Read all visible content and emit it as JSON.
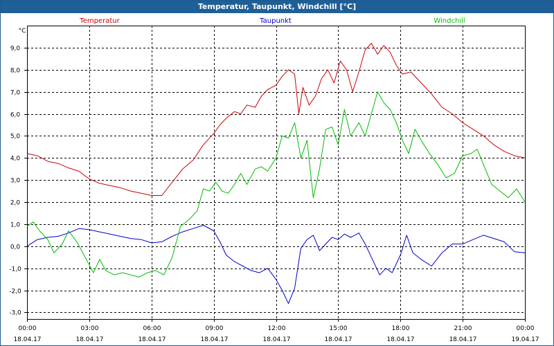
{
  "window": {
    "title": "Temperatur, Taupunkt, Windchill [°C]"
  },
  "chart_data": {
    "type": "line",
    "title": "Temperatur, Taupunkt, Windchill [°C]",
    "ylabel": "°C",
    "ylim": [
      -3.3,
      10.0
    ],
    "xlim_hours": [
      0,
      24
    ],
    "grid": true,
    "legend_position": "top",
    "y_ticks": [
      "9,0",
      "8,0",
      "7,0",
      "6,0",
      "5,0",
      "4,0",
      "3,0",
      "2,0",
      "1,0",
      "0,0",
      "-1,0",
      "-2,0",
      "-3,0"
    ],
    "y_tick_values": [
      9,
      8,
      7,
      6,
      5,
      4,
      3,
      2,
      1,
      0,
      -1,
      -2,
      -3
    ],
    "x_ticks": [
      {
        "time": "00:00",
        "date": "18.04.17"
      },
      {
        "time": "03:00",
        "date": "18.04.17"
      },
      {
        "time": "06:00",
        "date": "18.04.17"
      },
      {
        "time": "09:00",
        "date": "18.04.17"
      },
      {
        "time": "12:00",
        "date": "18.04.17"
      },
      {
        "time": "15:00",
        "date": "18.04.17"
      },
      {
        "time": "18:00",
        "date": "18.04.17"
      },
      {
        "time": "21:00",
        "date": "18.04.17"
      },
      {
        "time": "00:00",
        "date": "19.04.17"
      }
    ],
    "x_tick_hours": [
      0,
      3,
      6,
      9,
      12,
      15,
      18,
      21,
      24
    ],
    "series": [
      {
        "name": "Temperatur",
        "color": "#cc0000",
        "points": [
          [
            0,
            4.2
          ],
          [
            0.5,
            4.1
          ],
          [
            1,
            3.85
          ],
          [
            1.5,
            3.75
          ],
          [
            2,
            3.55
          ],
          [
            2.5,
            3.4
          ],
          [
            3,
            3.05
          ],
          [
            3.5,
            2.85
          ],
          [
            4,
            2.75
          ],
          [
            4.5,
            2.65
          ],
          [
            5,
            2.5
          ],
          [
            5.5,
            2.4
          ],
          [
            6,
            2.3
          ],
          [
            6.5,
            2.3
          ],
          [
            7,
            2.9
          ],
          [
            7.5,
            3.5
          ],
          [
            8,
            3.9
          ],
          [
            8.5,
            4.6
          ],
          [
            9,
            5.1
          ],
          [
            9.3,
            5.5
          ],
          [
            9.6,
            5.8
          ],
          [
            10,
            6.1
          ],
          [
            10.3,
            6.0
          ],
          [
            10.6,
            6.4
          ],
          [
            11,
            6.3
          ],
          [
            11.3,
            6.8
          ],
          [
            11.6,
            7.1
          ],
          [
            12,
            7.3
          ],
          [
            12.3,
            7.7
          ],
          [
            12.6,
            8.0
          ],
          [
            12.9,
            7.8
          ],
          [
            13.1,
            6.0
          ],
          [
            13.3,
            7.2
          ],
          [
            13.6,
            6.4
          ],
          [
            13.9,
            6.8
          ],
          [
            14.2,
            7.6
          ],
          [
            14.5,
            8.0
          ],
          [
            14.8,
            7.4
          ],
          [
            15.1,
            8.4
          ],
          [
            15.4,
            8.0
          ],
          [
            15.7,
            7.0
          ],
          [
            16,
            7.9
          ],
          [
            16.3,
            8.9
          ],
          [
            16.6,
            9.2
          ],
          [
            16.9,
            8.7
          ],
          [
            17.2,
            9.1
          ],
          [
            17.5,
            8.8
          ],
          [
            17.8,
            8.2
          ],
          [
            18.1,
            7.8
          ],
          [
            18.5,
            7.9
          ],
          [
            19,
            7.4
          ],
          [
            19.5,
            6.9
          ],
          [
            20,
            6.3
          ],
          [
            20.5,
            6.0
          ],
          [
            21,
            5.6
          ],
          [
            21.5,
            5.3
          ],
          [
            22,
            5.0
          ],
          [
            22.5,
            4.6
          ],
          [
            23,
            4.3
          ],
          [
            23.5,
            4.1
          ],
          [
            24,
            4.0
          ]
        ]
      },
      {
        "name": "Taupunkt",
        "color": "#0000cc",
        "points": [
          [
            0,
            0
          ],
          [
            0.5,
            0.3
          ],
          [
            1,
            0.4
          ],
          [
            1.5,
            0.45
          ],
          [
            2,
            0.6
          ],
          [
            2.5,
            0.8
          ],
          [
            3,
            0.75
          ],
          [
            3.5,
            0.65
          ],
          [
            4,
            0.55
          ],
          [
            4.5,
            0.45
          ],
          [
            5,
            0.35
          ],
          [
            5.5,
            0.3
          ],
          [
            6,
            0.15
          ],
          [
            6.5,
            0.2
          ],
          [
            7,
            0.45
          ],
          [
            7.5,
            0.65
          ],
          [
            8,
            0.8
          ],
          [
            8.5,
            0.95
          ],
          [
            9,
            0.7
          ],
          [
            9.3,
            0.2
          ],
          [
            9.6,
            -0.4
          ],
          [
            10,
            -0.7
          ],
          [
            10.4,
            -0.9
          ],
          [
            10.8,
            -1.1
          ],
          [
            11.2,
            -1.2
          ],
          [
            11.6,
            -1.0
          ],
          [
            12,
            -1.5
          ],
          [
            12.3,
            -2.0
          ],
          [
            12.6,
            -2.6
          ],
          [
            12.9,
            -1.9
          ],
          [
            13.2,
            -0.1
          ],
          [
            13.5,
            0.3
          ],
          [
            13.8,
            0.5
          ],
          [
            14.1,
            -0.2
          ],
          [
            14.4,
            0.1
          ],
          [
            14.7,
            0.4
          ],
          [
            15,
            0.3
          ],
          [
            15.3,
            0.55
          ],
          [
            15.6,
            0.4
          ],
          [
            16,
            0.6
          ],
          [
            16.3,
            0.1
          ],
          [
            16.6,
            -0.5
          ],
          [
            17,
            -1.3
          ],
          [
            17.3,
            -1.0
          ],
          [
            17.6,
            -1.2
          ],
          [
            18,
            -0.4
          ],
          [
            18.3,
            0.5
          ],
          [
            18.6,
            -0.3
          ],
          [
            19,
            -0.6
          ],
          [
            19.5,
            -0.9
          ],
          [
            20,
            -0.3
          ],
          [
            20.5,
            0.1
          ],
          [
            21,
            0.1
          ],
          [
            21.5,
            0.3
          ],
          [
            22,
            0.5
          ],
          [
            22.5,
            0.35
          ],
          [
            23,
            0.2
          ],
          [
            23.5,
            -0.25
          ],
          [
            24,
            -0.3
          ]
        ]
      },
      {
        "name": "Windchill",
        "color": "#00bb00",
        "points": [
          [
            0,
            0.9
          ],
          [
            0.3,
            1.1
          ],
          [
            0.6,
            0.7
          ],
          [
            1,
            0.3
          ],
          [
            1.3,
            -0.3
          ],
          [
            1.7,
            0.1
          ],
          [
            2,
            0.7
          ],
          [
            2.4,
            0.2
          ],
          [
            2.8,
            -0.5
          ],
          [
            3.2,
            -1.2
          ],
          [
            3.5,
            -0.6
          ],
          [
            3.8,
            -1.1
          ],
          [
            4.2,
            -1.3
          ],
          [
            4.6,
            -1.2
          ],
          [
            5,
            -1.3
          ],
          [
            5.4,
            -1.4
          ],
          [
            5.8,
            -1.2
          ],
          [
            6.2,
            -1.1
          ],
          [
            6.6,
            -1.3
          ],
          [
            7,
            -0.5
          ],
          [
            7.4,
            0.9
          ],
          [
            7.8,
            1.2
          ],
          [
            8.2,
            1.6
          ],
          [
            8.5,
            2.6
          ],
          [
            8.8,
            2.5
          ],
          [
            9.1,
            2.9
          ],
          [
            9.4,
            2.5
          ],
          [
            9.7,
            2.4
          ],
          [
            10,
            2.8
          ],
          [
            10.3,
            3.3
          ],
          [
            10.6,
            2.8
          ],
          [
            11,
            3.5
          ],
          [
            11.3,
            3.6
          ],
          [
            11.6,
            3.4
          ],
          [
            12,
            4.0
          ],
          [
            12.3,
            5.0
          ],
          [
            12.6,
            4.9
          ],
          [
            12.9,
            5.6
          ],
          [
            13.2,
            4.0
          ],
          [
            13.5,
            4.8
          ],
          [
            13.8,
            2.2
          ],
          [
            14.1,
            3.5
          ],
          [
            14.4,
            5.3
          ],
          [
            14.7,
            5.4
          ],
          [
            15,
            4.6
          ],
          [
            15.3,
            6.2
          ],
          [
            15.6,
            5.0
          ],
          [
            16,
            5.6
          ],
          [
            16.3,
            5.0
          ],
          [
            16.6,
            6.0
          ],
          [
            16.9,
            7.0
          ],
          [
            17.2,
            6.5
          ],
          [
            17.5,
            6.2
          ],
          [
            17.8,
            5.6
          ],
          [
            18.1,
            4.8
          ],
          [
            18.4,
            4.2
          ],
          [
            18.7,
            5.3
          ],
          [
            19,
            4.8
          ],
          [
            19.4,
            4.2
          ],
          [
            19.8,
            3.7
          ],
          [
            20.2,
            3.1
          ],
          [
            20.6,
            3.3
          ],
          [
            21,
            4.1
          ],
          [
            21.4,
            4.2
          ],
          [
            21.7,
            4.4
          ],
          [
            22,
            3.7
          ],
          [
            22.4,
            2.8
          ],
          [
            22.8,
            2.5
          ],
          [
            23.2,
            2.2
          ],
          [
            23.6,
            2.6
          ],
          [
            24,
            2.0
          ]
        ]
      }
    ]
  }
}
